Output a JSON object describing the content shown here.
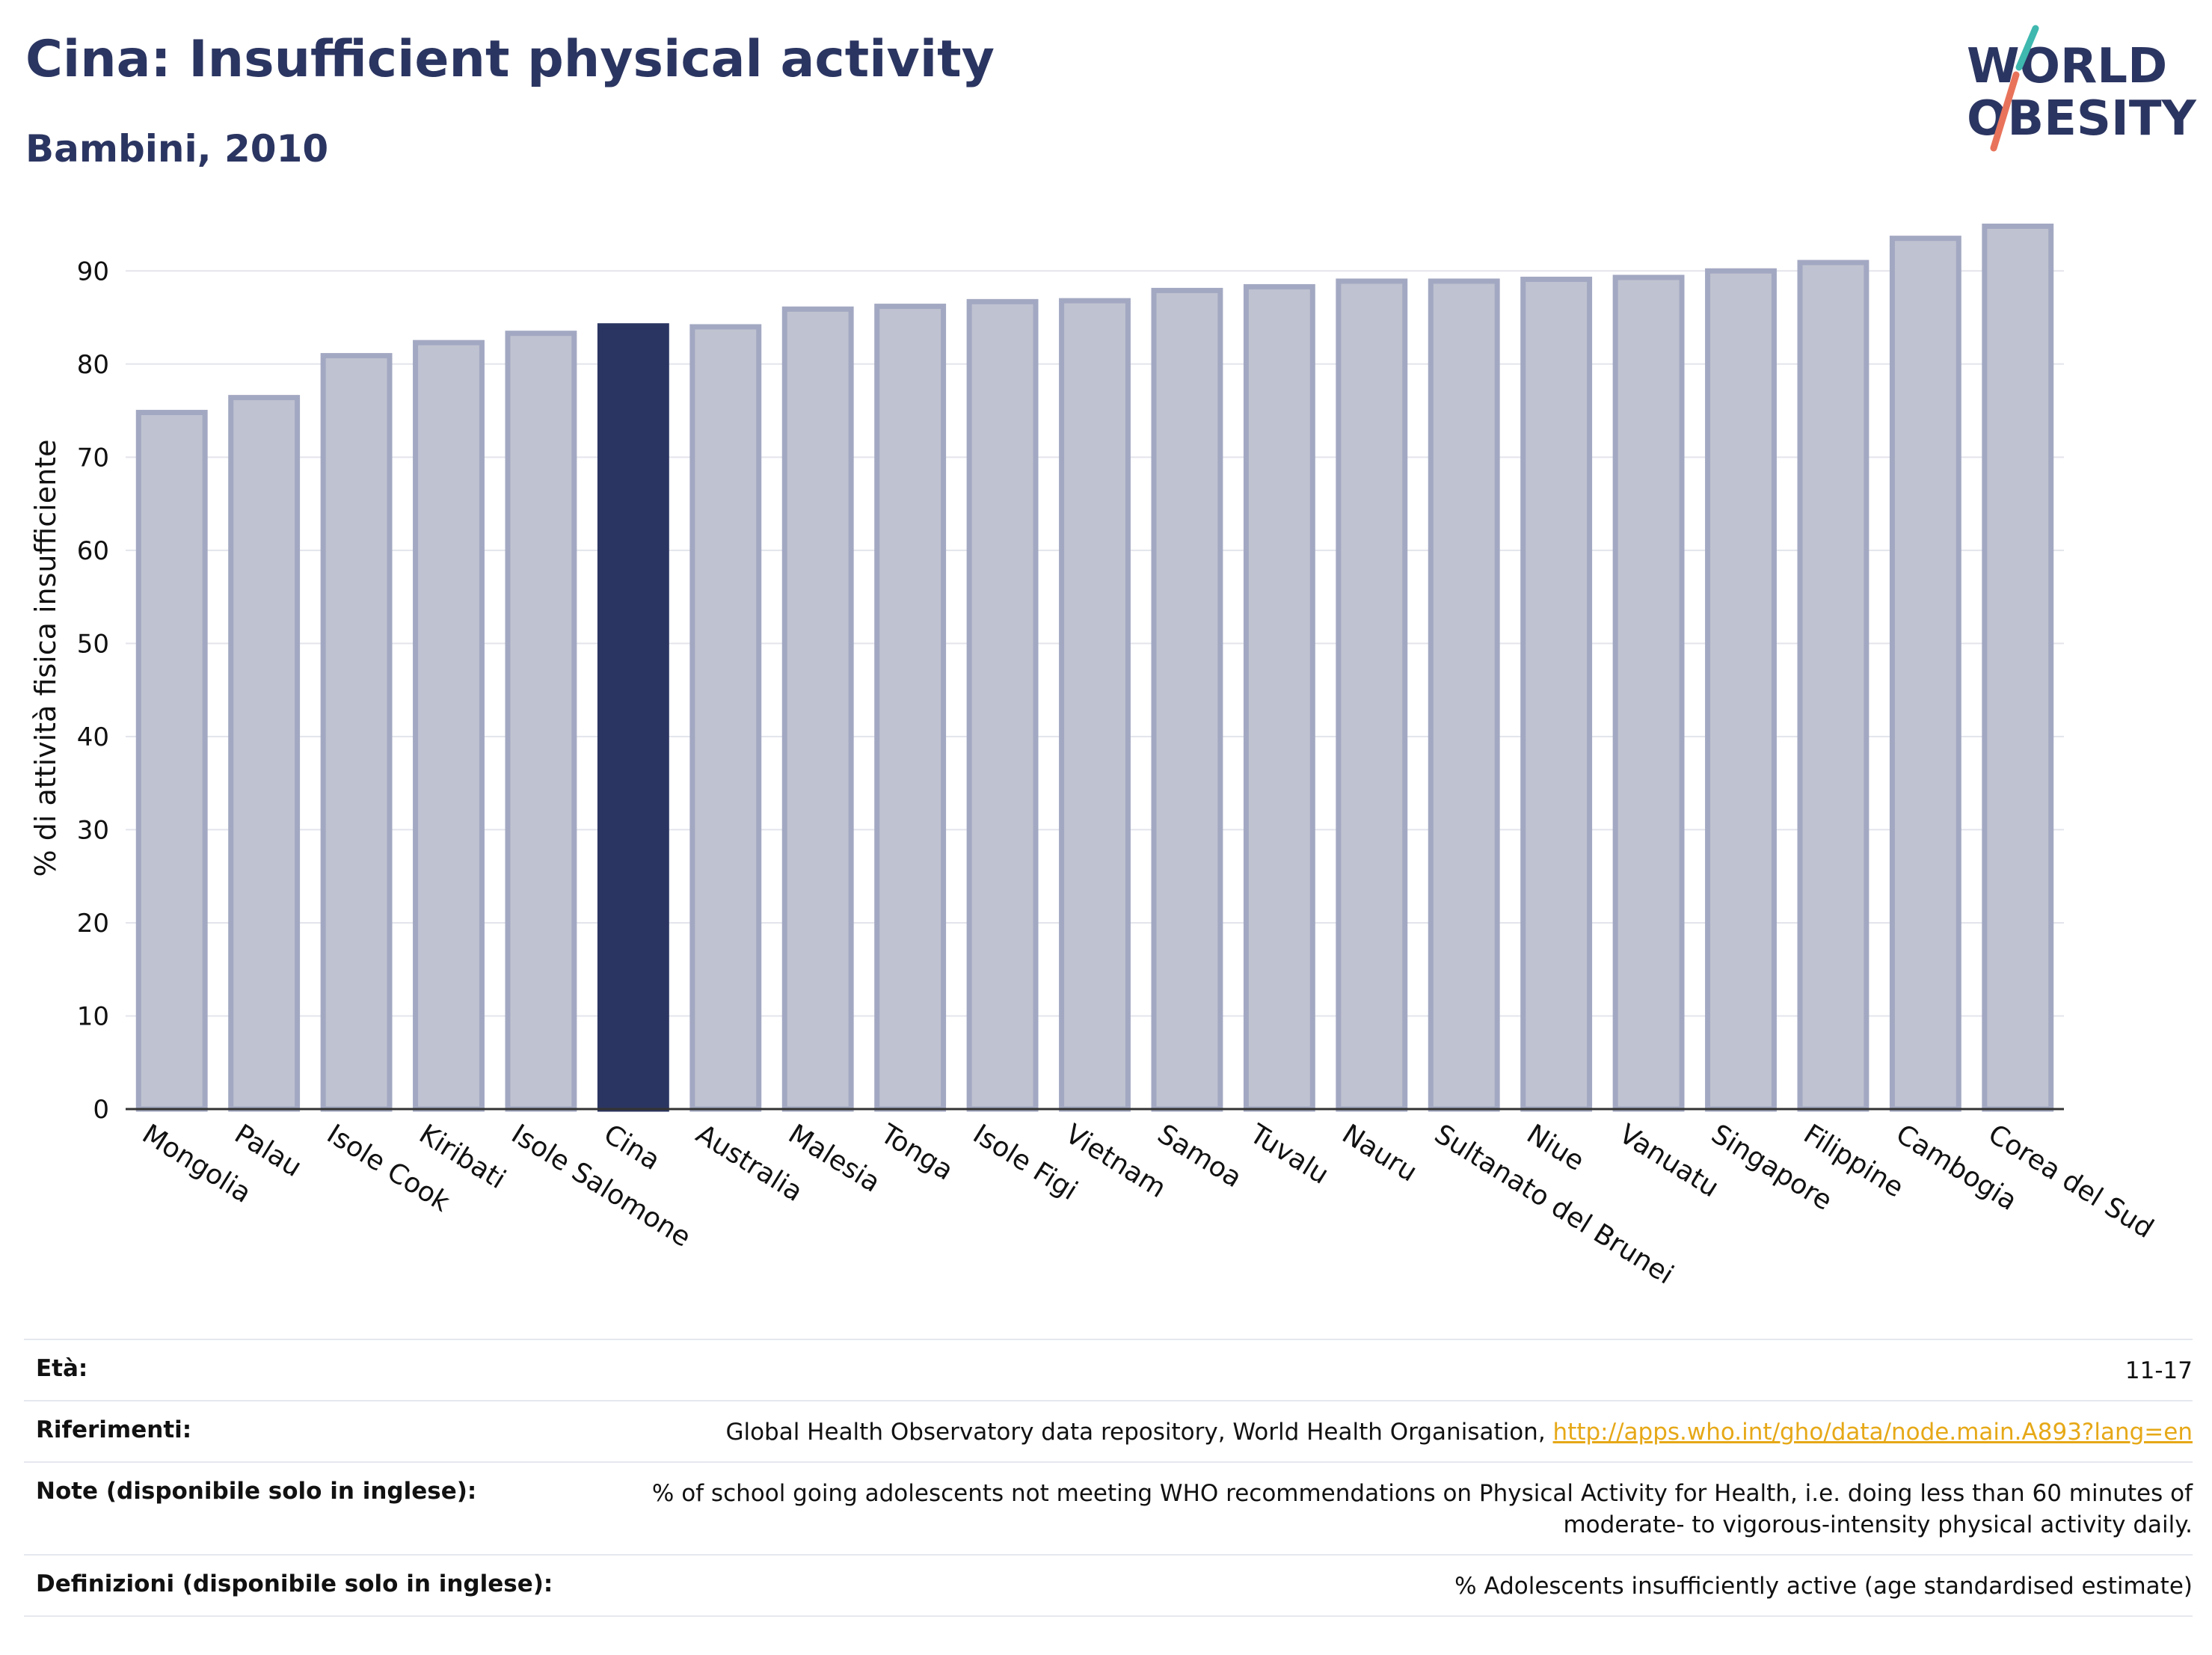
{
  "header": {
    "title": "Cina: Insufficient physical activity",
    "subtitle": "Bambini, 2010",
    "logo_line1": "WORLD",
    "logo_line2": "OBESITY"
  },
  "colors": {
    "highlight": "#2b3561",
    "bar_fill": "#bfc2d0",
    "bar_stroke": "#a3a8c2",
    "logo_teal": "#3fb8af",
    "logo_coral": "#e8735a",
    "link": "#e6a817"
  },
  "chart_data": {
    "type": "bar",
    "title": "",
    "xlabel": "",
    "ylabel": "% di attività fisica insufficiente",
    "ylim": [
      0,
      95
    ],
    "yticks": [
      0,
      10,
      20,
      30,
      40,
      50,
      60,
      70,
      80,
      90
    ],
    "grid": true,
    "highlight_category": "Cina",
    "categories": [
      "Mongolia",
      "Palau",
      "Isole Cook",
      "Kiribati",
      "Isole Salomone",
      "Cina",
      "Australia",
      "Malesia",
      "Tonga",
      "Isole Figi",
      "Vietnam",
      "Samoa",
      "Tuvalu",
      "Nauru",
      "Sultanato del Brunei",
      "Niue",
      "Vanuatu",
      "Singapore",
      "Filippine",
      "Cambogia",
      "Corea del Sud"
    ],
    "values": [
      74.8,
      76.4,
      80.9,
      82.3,
      83.3,
      84.1,
      84.0,
      85.9,
      86.2,
      86.7,
      86.8,
      87.9,
      88.3,
      88.9,
      88.9,
      89.1,
      89.3,
      90.0,
      90.9,
      93.5,
      94.8
    ]
  },
  "info": [
    {
      "label": "Età:",
      "value": "11-17"
    },
    {
      "label": "Riferimenti:",
      "value": "Global Health Observatory data repository, World Health Organisation, ",
      "link": "http://apps.who.int/gho/data/node.main.A893?lang=en"
    },
    {
      "label": "Note (disponibile solo in inglese):",
      "value": "% of school going adolescents not meeting WHO recommendations on Physical Activity for Health, i.e. doing less than 60 minutes of moderate- to vigorous-intensity physical activity daily."
    },
    {
      "label": "Definizioni (disponibile solo in inglese):",
      "value": "% Adolescents insufficiently active (age standardised estimate)"
    }
  ]
}
